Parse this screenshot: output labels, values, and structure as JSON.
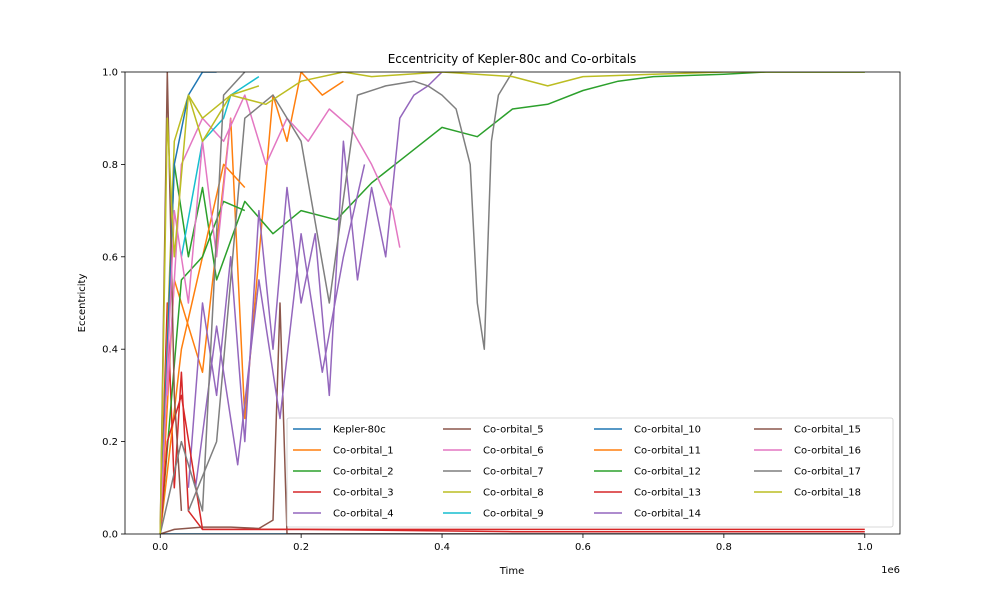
{
  "chart_data": {
    "type": "line",
    "title": "Eccentricity of Kepler-80c and Co-orbitals",
    "xlabel": "Time",
    "ylabel": "Eccentricity",
    "x_offset_label": "1e6",
    "xlim": [
      -50000,
      1050000
    ],
    "ylim": [
      0.0,
      1.0
    ],
    "x_ticks": [
      0,
      200000,
      400000,
      600000,
      800000,
      1000000
    ],
    "x_tick_labels": [
      "0.0",
      "0.2",
      "0.4",
      "0.6",
      "0.8",
      "1.0"
    ],
    "y_ticks": [
      0.0,
      0.2,
      0.4,
      0.6,
      0.8,
      1.0
    ],
    "y_tick_labels": [
      "0.0",
      "0.2",
      "0.4",
      "0.6",
      "0.8",
      "1.0"
    ],
    "grid": false,
    "legend_position": "lower-right",
    "legend_columns": 4,
    "series": [
      {
        "name": "Kepler-80c",
        "color": "#1f77b4",
        "x": [
          0,
          200000,
          400000,
          600000,
          800000,
          1000000
        ],
        "y": [
          0.0,
          0.0,
          0.0,
          0.0,
          0.0,
          0.0
        ]
      },
      {
        "name": "Co-orbital_1",
        "color": "#ff7f0e",
        "x": [
          0,
          20000,
          60000,
          100000,
          120000,
          160000,
          180000,
          200000,
          230000,
          260000
        ],
        "y": [
          0.0,
          0.55,
          0.35,
          0.9,
          0.25,
          0.95,
          0.85,
          1.0,
          0.95,
          0.98
        ]
      },
      {
        "name": "Co-orbital_2",
        "color": "#2ca02c",
        "x": [
          0,
          20000,
          40000,
          60000,
          80000,
          120000,
          160000,
          200000,
          250000,
          300000,
          350000,
          400000,
          450000,
          500000,
          550000,
          600000,
          650000,
          700000,
          800000,
          860000,
          1000000
        ],
        "y": [
          0.0,
          0.8,
          0.6,
          0.75,
          0.55,
          0.72,
          0.65,
          0.7,
          0.68,
          0.76,
          0.82,
          0.88,
          0.86,
          0.92,
          0.93,
          0.96,
          0.98,
          0.99,
          0.995,
          1.0,
          1.0
        ]
      },
      {
        "name": "Co-orbital_3",
        "color": "#d62728",
        "x": [
          0,
          10000,
          20000,
          30000,
          40000,
          60000,
          100000,
          200000,
          400000,
          600000,
          800000,
          1000000
        ],
        "y": [
          0.0,
          0.5,
          0.1,
          0.35,
          0.05,
          0.01,
          0.01,
          0.01,
          0.01,
          0.01,
          0.01,
          0.01
        ]
      },
      {
        "name": "Co-orbital_4",
        "color": "#9467bd",
        "x": [
          40000,
          60000,
          80000,
          100000,
          120000,
          140000,
          160000,
          180000,
          200000,
          220000,
          240000,
          260000,
          280000,
          300000,
          320000,
          340000,
          360000,
          380000,
          400000
        ],
        "y": [
          0.1,
          0.5,
          0.3,
          0.6,
          0.2,
          0.7,
          0.4,
          0.75,
          0.5,
          0.65,
          0.3,
          0.85,
          0.55,
          0.75,
          0.6,
          0.9,
          0.95,
          0.97,
          1.0
        ]
      },
      {
        "name": "Co-orbital_5",
        "color": "#8c564b",
        "x": [
          0,
          20000,
          60000,
          100000,
          140000,
          160000,
          170000,
          180000,
          200000,
          260000,
          400000,
          600000,
          800000,
          1000000
        ],
        "y": [
          0.0,
          0.01,
          0.015,
          0.015,
          0.012,
          0.03,
          0.5,
          0.0,
          0.0,
          0.0,
          0.0,
          0.0,
          0.0,
          0.0
        ]
      },
      {
        "name": "Co-orbital_6",
        "color": "#e377c2",
        "x": [
          10000,
          30000,
          60000,
          90000,
          120000,
          150000,
          180000,
          210000,
          240000,
          270000,
          300000,
          330000,
          340000
        ],
        "y": [
          0.3,
          0.8,
          0.9,
          0.85,
          0.95,
          0.8,
          0.9,
          0.85,
          0.92,
          0.88,
          0.8,
          0.7,
          0.62
        ]
      },
      {
        "name": "Co-orbital_7",
        "color": "#7f7f7f",
        "x": [
          40000,
          80000,
          120000,
          160000,
          200000,
          240000,
          280000,
          320000,
          360000,
          380000,
          400000,
          420000,
          440000,
          450000,
          460000,
          470000,
          480000,
          500000
        ],
        "y": [
          0.05,
          0.2,
          0.9,
          0.95,
          0.85,
          0.5,
          0.95,
          0.97,
          0.98,
          0.97,
          0.95,
          0.92,
          0.8,
          0.5,
          0.4,
          0.85,
          0.95,
          1.0
        ]
      },
      {
        "name": "Co-orbital_8",
        "color": "#bcbd22",
        "x": [
          0,
          20000,
          40000,
          60000,
          100000,
          150000,
          200000,
          260000,
          300000,
          400000,
          500000,
          550000,
          600000,
          700000,
          800000,
          900000,
          1000000
        ],
        "y": [
          0.0,
          0.85,
          0.95,
          0.9,
          0.95,
          0.93,
          0.98,
          1.0,
          0.99,
          1.0,
          0.99,
          0.97,
          0.99,
          0.995,
          1.0,
          1.0,
          1.0
        ]
      },
      {
        "name": "Co-orbital_9",
        "color": "#17becf",
        "x": [
          30000,
          60000,
          90000,
          100000,
          120000,
          140000
        ],
        "y": [
          0.6,
          0.85,
          0.9,
          0.95,
          0.97,
          0.99
        ]
      },
      {
        "name": "Co-orbital_10",
        "color": "#1f77b4",
        "x": [
          0,
          20000,
          40000,
          60000,
          80000
        ],
        "y": [
          0.0,
          0.8,
          0.95,
          1.0,
          1.0
        ]
      },
      {
        "name": "Co-orbital_11",
        "color": "#ff7f0e",
        "x": [
          0,
          30000,
          60000,
          90000,
          120000
        ],
        "y": [
          0.0,
          0.4,
          0.6,
          0.8,
          0.75
        ]
      },
      {
        "name": "Co-orbital_12",
        "color": "#2ca02c",
        "x": [
          0,
          30000,
          60000,
          90000,
          120000
        ],
        "y": [
          0.0,
          0.55,
          0.6,
          0.72,
          0.7
        ]
      },
      {
        "name": "Co-orbital_13",
        "color": "#d62728",
        "x": [
          0,
          10000,
          30000,
          60000,
          200000,
          500000,
          800000,
          1000000
        ],
        "y": [
          0.0,
          0.2,
          0.3,
          0.01,
          0.01,
          0.005,
          0.005,
          0.005
        ]
      },
      {
        "name": "Co-orbital_14",
        "color": "#9467bd",
        "x": [
          50000,
          80000,
          110000,
          140000,
          170000,
          200000,
          230000,
          260000,
          290000
        ],
        "y": [
          0.1,
          0.45,
          0.15,
          0.55,
          0.25,
          0.65,
          0.35,
          0.6,
          0.8
        ]
      },
      {
        "name": "Co-orbital_15",
        "color": "#8c564b",
        "x": [
          0,
          10000,
          20000,
          30000
        ],
        "y": [
          0.0,
          1.0,
          0.3,
          0.05
        ]
      },
      {
        "name": "Co-orbital_16",
        "color": "#e377c2",
        "x": [
          0,
          20000,
          40000,
          60000,
          80000,
          100000
        ],
        "y": [
          0.0,
          0.7,
          0.5,
          0.85,
          0.6,
          0.9
        ]
      },
      {
        "name": "Co-orbital_17",
        "color": "#7f7f7f",
        "x": [
          0,
          30000,
          60000,
          90000,
          120000
        ],
        "y": [
          0.0,
          0.2,
          0.05,
          0.95,
          1.0
        ]
      },
      {
        "name": "Co-orbital_18",
        "color": "#bcbd22",
        "x": [
          0,
          10000,
          20000,
          40000,
          60000,
          80000,
          100000,
          140000
        ],
        "y": [
          0.0,
          0.9,
          0.6,
          0.95,
          0.85,
          0.9,
          0.95,
          0.97
        ]
      }
    ]
  }
}
